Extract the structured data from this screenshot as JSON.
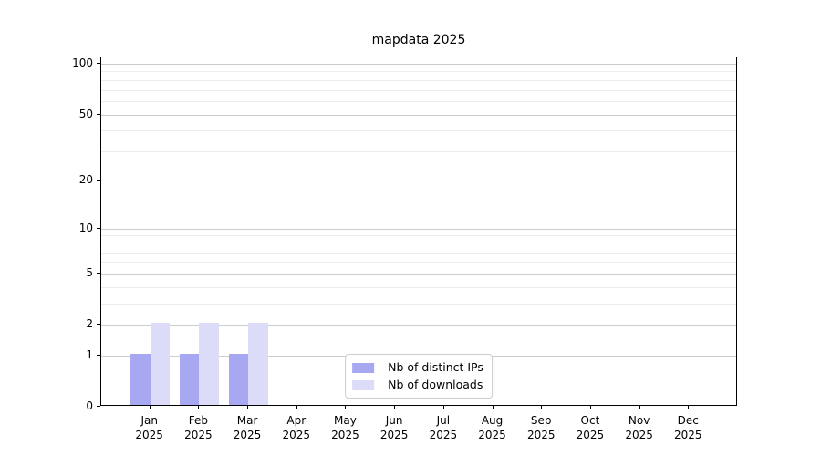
{
  "chart_data": {
    "type": "bar",
    "title": "mapdata 2025",
    "x_tick_months": [
      "Jan",
      "Feb",
      "Mar",
      "Apr",
      "May",
      "Jun",
      "Jul",
      "Aug",
      "Sep",
      "Oct",
      "Nov",
      "Dec"
    ],
    "x_tick_year": "2025",
    "series": [
      {
        "key": "distinct-ips",
        "name": "Nb of distinct IPs",
        "color": "#a8a8f2",
        "values": [
          1,
          1,
          1,
          0,
          0,
          0,
          0,
          0,
          0,
          0,
          0,
          0
        ]
      },
      {
        "key": "downloads",
        "name": "Nb of downloads",
        "color": "#dcdcf8",
        "values": [
          2,
          2,
          2,
          0,
          0,
          0,
          0,
          0,
          0,
          0,
          0,
          0
        ]
      }
    ],
    "y_major_ticks": [
      0,
      1,
      2,
      5,
      10,
      20,
      50,
      100
    ],
    "y_minor_ticks": [
      3,
      4,
      6,
      7,
      8,
      9,
      30,
      40,
      60,
      70,
      80,
      90
    ],
    "scale": "log1p",
    "ylim": [
      0,
      109
    ],
    "xlabel": "",
    "ylabel": "",
    "legend_position": "lower center",
    "grid": true,
    "colors": {
      "major_grid": "#cccccc",
      "minor_grid": "#ededed",
      "axis": "#000000",
      "background": "#ffffff"
    }
  }
}
